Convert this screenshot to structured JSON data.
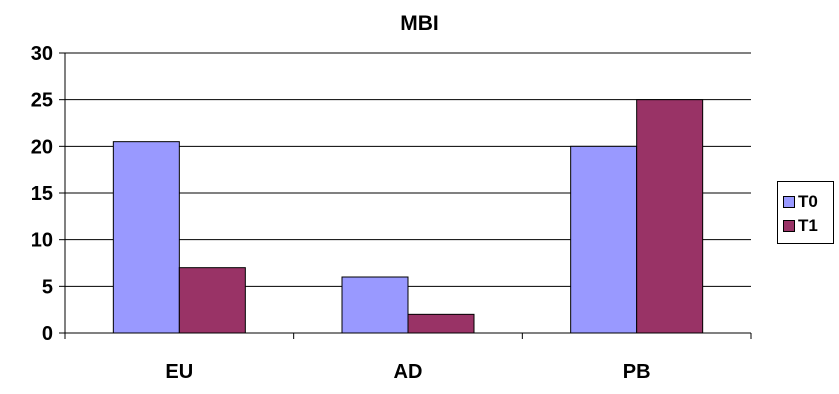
{
  "chart_data": {
    "type": "bar",
    "title": "MBI",
    "categories": [
      "EU",
      "AD",
      "PB"
    ],
    "series": [
      {
        "name": "T0",
        "values": [
          20.5,
          6,
          20
        ],
        "color": "#9999FF"
      },
      {
        "name": "T1",
        "values": [
          7,
          2,
          25
        ],
        "color": "#993366"
      }
    ],
    "ylim": [
      0,
      30
    ],
    "yticks": [
      0,
      5,
      10,
      15,
      20,
      25,
      30
    ],
    "grid": true,
    "legend": "right"
  }
}
